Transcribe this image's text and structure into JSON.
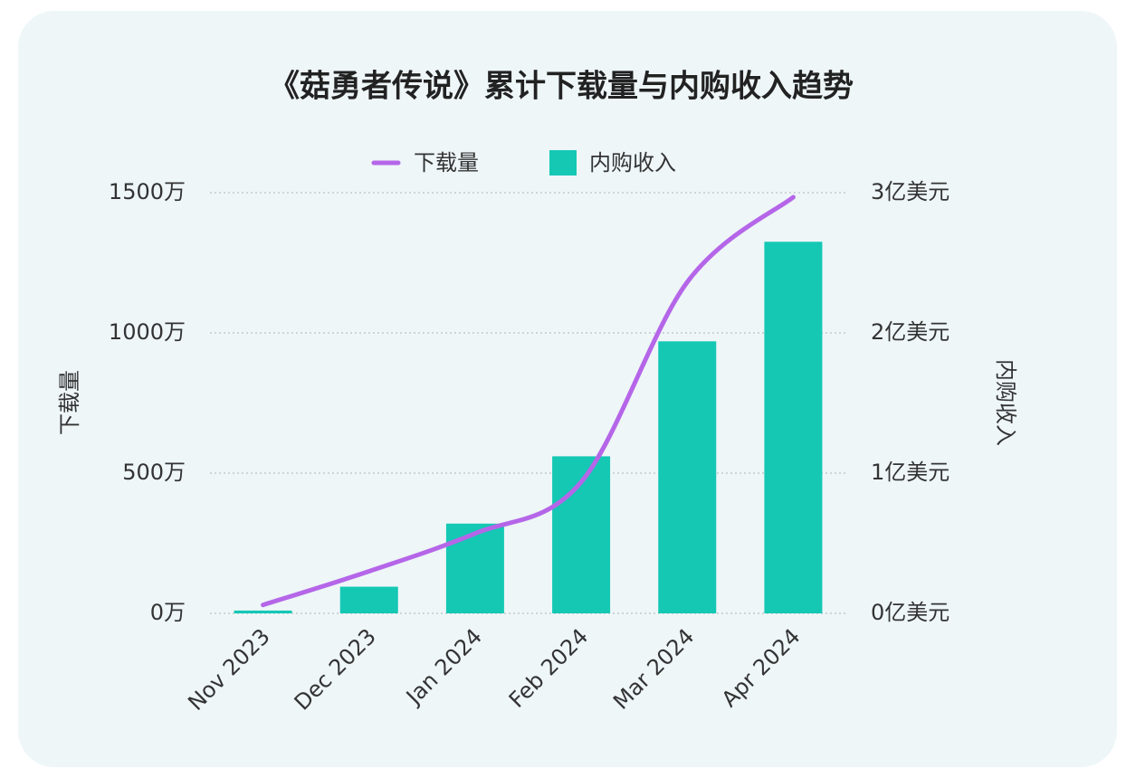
{
  "chart_data": {
    "type": "combo",
    "title": "《菇勇者传说》累计下载量与内购收入趋势",
    "categories": [
      "Nov 2023",
      "Dec 2023",
      "Jan 2024",
      "Feb 2024",
      "Mar 2024",
      "Apr 2024"
    ],
    "series": [
      {
        "name": "下载量",
        "type": "line",
        "color": "#b566e8",
        "values": [
          30,
          150,
          285,
          468,
          1181,
          1484
        ]
      },
      {
        "name": "内购收入",
        "type": "bar",
        "axis": "y2",
        "color": "#14c8b4",
        "values": [
          0.02,
          0.19,
          0.64,
          1.12,
          1.94,
          2.65
        ]
      }
    ],
    "ylabel": "下载量",
    "y2label": "内购收入",
    "ylim": [
      0,
      1500
    ],
    "yticks": [
      {
        "value": 0,
        "label": "0万"
      },
      {
        "value": 500,
        "label": "500万"
      },
      {
        "value": 1000,
        "label": "1000万"
      },
      {
        "value": 1500,
        "label": "1500万"
      }
    ],
    "y2lim": [
      0,
      3
    ],
    "y2ticks": [
      {
        "value": 0,
        "label": "0亿美元"
      },
      {
        "value": 1,
        "label": "1亿美元"
      },
      {
        "value": 2,
        "label": "2亿美元"
      },
      {
        "value": 3,
        "label": "3亿美元"
      }
    ],
    "grid": true
  }
}
